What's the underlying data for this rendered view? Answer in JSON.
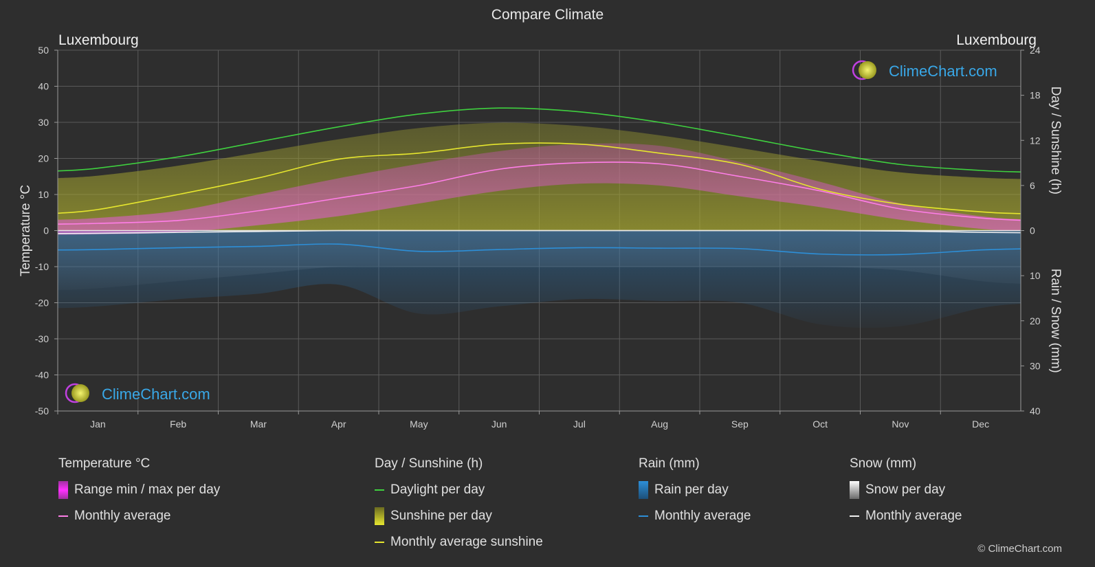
{
  "title": "Compare Climate",
  "location_left": "Luxembourg",
  "location_right": "Luxembourg",
  "brand": "ClimeChart.com",
  "copyright": "© ClimeChart.com",
  "colors": {
    "background": "#2e2e2e",
    "daylight": "#3fd13f",
    "sunshine_avg": "#e6e62e",
    "sunshine_fill": "#a8a833",
    "temp_range": "#e040c0",
    "temp_avg": "#ff7ee8",
    "rain": "#2d8fd8",
    "snow": "#f0f0f0",
    "grid": "#5a5a5a"
  },
  "chart_data": {
    "type": "area",
    "months": [
      "Jan",
      "Feb",
      "Mar",
      "Apr",
      "May",
      "Jun",
      "Jul",
      "Aug",
      "Sep",
      "Oct",
      "Nov",
      "Dec"
    ],
    "axes": {
      "left": {
        "label": "Temperature °C",
        "min": -50,
        "max": 50,
        "ticks": [
          50,
          40,
          30,
          20,
          10,
          0,
          -10,
          -20,
          -30,
          -40,
          -50
        ]
      },
      "right_top": {
        "label": "Day / Sunshine (h)",
        "min": 0,
        "max": 24,
        "ticks": [
          24,
          18,
          12,
          6,
          0
        ]
      },
      "right_bottom": {
        "label": "Rain / Snow (mm)",
        "min": 0,
        "max": 40,
        "ticks": [
          0,
          10,
          20,
          30,
          40
        ]
      }
    },
    "grid": true,
    "series": [
      {
        "name": "Daylight per day",
        "unit": "h",
        "values": [
          8.3,
          9.8,
          11.8,
          13.8,
          15.5,
          16.3,
          15.8,
          14.4,
          12.5,
          10.5,
          8.8,
          8.0
        ]
      },
      {
        "name": "Monthly average sunshine",
        "unit": "h",
        "values": [
          2.8,
          4.8,
          7.0,
          9.5,
          10.3,
          11.5,
          11.5,
          10.3,
          8.8,
          5.5,
          3.5,
          2.5
        ]
      },
      {
        "name": "Temperature monthly average",
        "unit": "°C",
        "values": [
          2.0,
          2.8,
          5.5,
          9.0,
          12.5,
          17.0,
          18.8,
          18.5,
          15.0,
          11.0,
          6.0,
          3.5
        ]
      },
      {
        "name": "Temperature daily max (approx.)",
        "unit": "°C",
        "values": [
          3.5,
          5.5,
          10.0,
          14.5,
          18.5,
          22.0,
          24.0,
          23.5,
          19.0,
          13.5,
          7.5,
          4.0
        ]
      },
      {
        "name": "Temperature daily min (approx.)",
        "unit": "°C",
        "values": [
          -1.0,
          -0.5,
          1.5,
          4.0,
          7.5,
          11.0,
          13.0,
          12.5,
          9.5,
          6.5,
          3.0,
          0.5
        ]
      },
      {
        "name": "Rain monthly average",
        "unit": "mm",
        "values": [
          4.2,
          3.8,
          3.5,
          3.0,
          4.6,
          4.2,
          3.8,
          3.9,
          4.0,
          5.2,
          5.3,
          4.3
        ]
      },
      {
        "name": "Snow monthly average",
        "unit": "mm",
        "values": [
          0.6,
          0.4,
          0.2,
          0.0,
          0.0,
          0.0,
          0.0,
          0.0,
          0.0,
          0.0,
          0.1,
          0.4
        ]
      }
    ]
  },
  "legend": {
    "temperature": {
      "title": "Temperature °C",
      "items": [
        "Range min / max per day",
        "Monthly average"
      ]
    },
    "sunshine": {
      "title": "Day / Sunshine (h)",
      "items": [
        "Daylight per day",
        "Sunshine per day",
        "Monthly average sunshine"
      ]
    },
    "rain": {
      "title": "Rain (mm)",
      "items": [
        "Rain per day",
        "Monthly average"
      ]
    },
    "snow": {
      "title": "Snow (mm)",
      "items": [
        "Snow per day",
        "Monthly average"
      ]
    }
  }
}
